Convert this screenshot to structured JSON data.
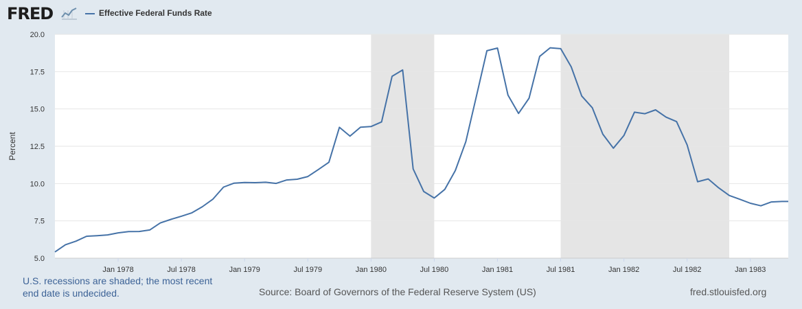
{
  "header": {
    "logo_text": "FRED",
    "logo_icon": "line-chart-icon",
    "series_title": "Effective Federal Funds Rate",
    "series_color": "#4572a7"
  },
  "chart_data": {
    "type": "line",
    "title": "Effective Federal Funds Rate",
    "ylabel": "Percent",
    "xlabel": "",
    "ylim": [
      5.0,
      20.0
    ],
    "yticks": [
      5.0,
      7.5,
      10.0,
      12.5,
      15.0,
      17.5,
      20.0
    ],
    "ytick_labels": [
      "5.0",
      "7.5",
      "10.0",
      "12.5",
      "15.0",
      "17.5",
      "20.0"
    ],
    "xticks": [
      {
        "month": 12,
        "label": "Jan 1978"
      },
      {
        "month": 18,
        "label": "Jul 1978"
      },
      {
        "month": 24,
        "label": "Jan 1979"
      },
      {
        "month": 30,
        "label": "Jul 1979"
      },
      {
        "month": 36,
        "label": "Jan 1980"
      },
      {
        "month": 42,
        "label": "Jul 1980"
      },
      {
        "month": 48,
        "label": "Jan 1981"
      },
      {
        "month": 54,
        "label": "Jul 1981"
      },
      {
        "month": 60,
        "label": "Jan 1982"
      },
      {
        "month": 66,
        "label": "Jul 1982"
      },
      {
        "month": 72,
        "label": "Jan 1983"
      }
    ],
    "x_start": "Jul 1977",
    "x_range_months_from_jan_1977": [
      6,
      75.6
    ],
    "recessions": [
      {
        "start": "Jan 1980",
        "end": "Jul 1980",
        "start_month": 36,
        "end_month": 42
      },
      {
        "start": "Jul 1981",
        "end": "Nov 1982",
        "start_month": 54,
        "end_month": 70
      }
    ],
    "series": [
      {
        "name": "Effective Federal Funds Rate",
        "color": "#4572a7",
        "start_month": 6,
        "values": [
          5.42,
          5.9,
          6.14,
          6.47,
          6.51,
          6.56,
          6.7,
          6.78,
          6.79,
          6.89,
          7.36,
          7.6,
          7.81,
          8.04,
          8.45,
          8.96,
          9.76,
          10.03,
          10.07,
          10.06,
          10.09,
          10.01,
          10.24,
          10.29,
          10.47,
          10.94,
          11.43,
          13.77,
          13.18,
          13.78,
          13.82,
          14.13,
          17.19,
          17.61,
          10.98,
          9.47,
          9.03,
          9.61,
          10.87,
          12.81,
          15.85,
          18.9,
          19.08,
          15.93,
          14.7,
          15.72,
          18.52,
          19.1,
          19.04,
          17.82,
          15.87,
          15.08,
          13.31,
          12.37,
          13.22,
          14.78,
          14.68,
          14.94,
          14.45,
          14.15,
          12.59,
          10.12,
          10.31,
          9.71,
          9.2,
          8.95,
          8.68,
          8.51,
          8.77,
          8.8
        ]
      }
    ]
  },
  "footer": {
    "recession_note": "U.S. recessions are shaded; the most recent end date is undecided.",
    "source": "Source: Board of Governors of the Federal Reserve System (US)",
    "site": "fred.stlouisfed.org"
  }
}
